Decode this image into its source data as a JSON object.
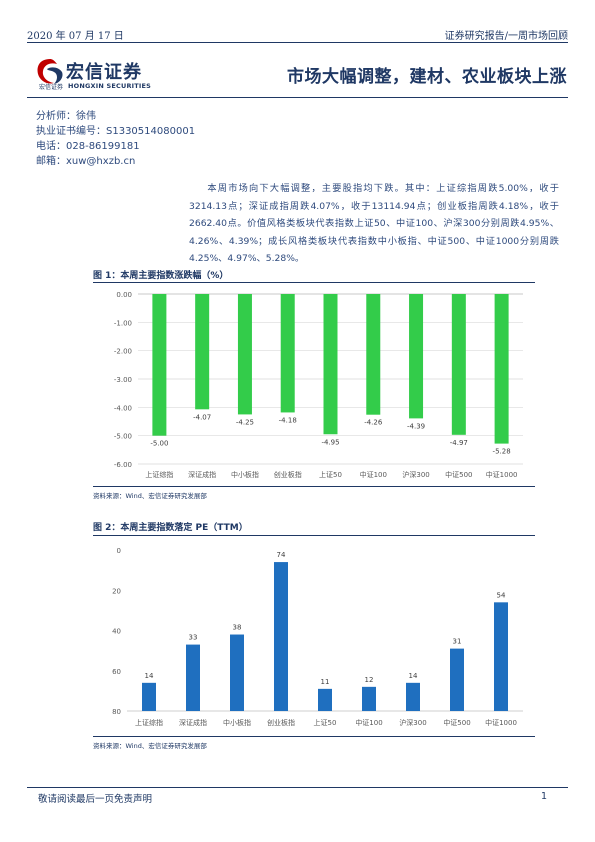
{
  "header": {
    "date": "2020 年 07 月 17 日",
    "section": "证券研究报告/一周市场回顾"
  },
  "logo": {
    "name_cn": "宏信证券",
    "small_cn": "宏信证券",
    "name_en": "HONGXIN SECURITIES",
    "brand_color": "#c00000"
  },
  "title": "市场大幅调整，建材、农业板块上涨",
  "analyst": {
    "name": "分析师：徐伟",
    "license": "执业证书编号：S1330514080001",
    "phone": "电话：028-86199181",
    "email": "邮箱：xuw@hxzb.cn"
  },
  "summary": "本周市场向下大幅调整，主要股指均下跌。其中：上证综指周跌5.00%，收于3214.13点；深证成指周跌4.07%，收于13114.94点；创业板指周跌4.18%，收于2662.40点。价值风格类板块代表指数上证50、中证100、沪深300分别周跌4.95%、4.26%、4.39%；成长风格类板块代表指数中小板指、中证500、中证1000分别周跌4.25%、4.97%、5.28%。",
  "figure1": {
    "title": "图 1：本周主要指数涨跌幅（%）",
    "source": "资料来源：Wind、宏信证券研究发展部"
  },
  "figure2": {
    "title": "图 2：本周主要指数落定 PE（TTM）",
    "source": "资料来源：Wind、宏信证券研究发展部"
  },
  "chart_data": [
    {
      "type": "bar",
      "title": "本周主要指数涨跌幅（%）",
      "categories": [
        "上证综指",
        "深证成指",
        "中小板指",
        "创业板指",
        "上证50",
        "中证100",
        "沪深300",
        "中证500",
        "中证1000"
      ],
      "values": [
        -5.0,
        -4.07,
        -4.25,
        -4.18,
        -4.95,
        -4.26,
        -4.39,
        -4.97,
        -5.28
      ],
      "value_labels": [
        "-5.00",
        "-4.07",
        "-4.25",
        "-4.18",
        "-4.95",
        "-4.26",
        "-4.39",
        "-4.97",
        "-5.28"
      ],
      "ylim": [
        -6.0,
        0.0
      ],
      "yticks": [
        "0.00",
        "-1.00",
        "-2.00",
        "-3.00",
        "-4.00",
        "-5.00",
        "-6.00"
      ],
      "color": "#33cc4a",
      "grid": true
    },
    {
      "type": "bar",
      "title": "本周主要指数落定 PE（TTM）",
      "categories": [
        "上证综指",
        "深证成指",
        "中小板指",
        "创业板指",
        "上证50",
        "中证100",
        "沪深300",
        "中证500",
        "中证1000"
      ],
      "values": [
        14,
        33,
        38,
        74,
        11,
        12,
        14,
        31,
        54
      ],
      "value_labels": [
        "14",
        "33",
        "38",
        "74",
        "11",
        "12",
        "14",
        "31",
        "54"
      ],
      "ylim": [
        0,
        80
      ],
      "yticks": [
        "0",
        "20",
        "40",
        "60",
        "80"
      ],
      "color": "#1f6fbf",
      "grid": false
    }
  ],
  "footer": {
    "disclaimer": "敬请阅读最后一页免责声明",
    "page": "1"
  }
}
